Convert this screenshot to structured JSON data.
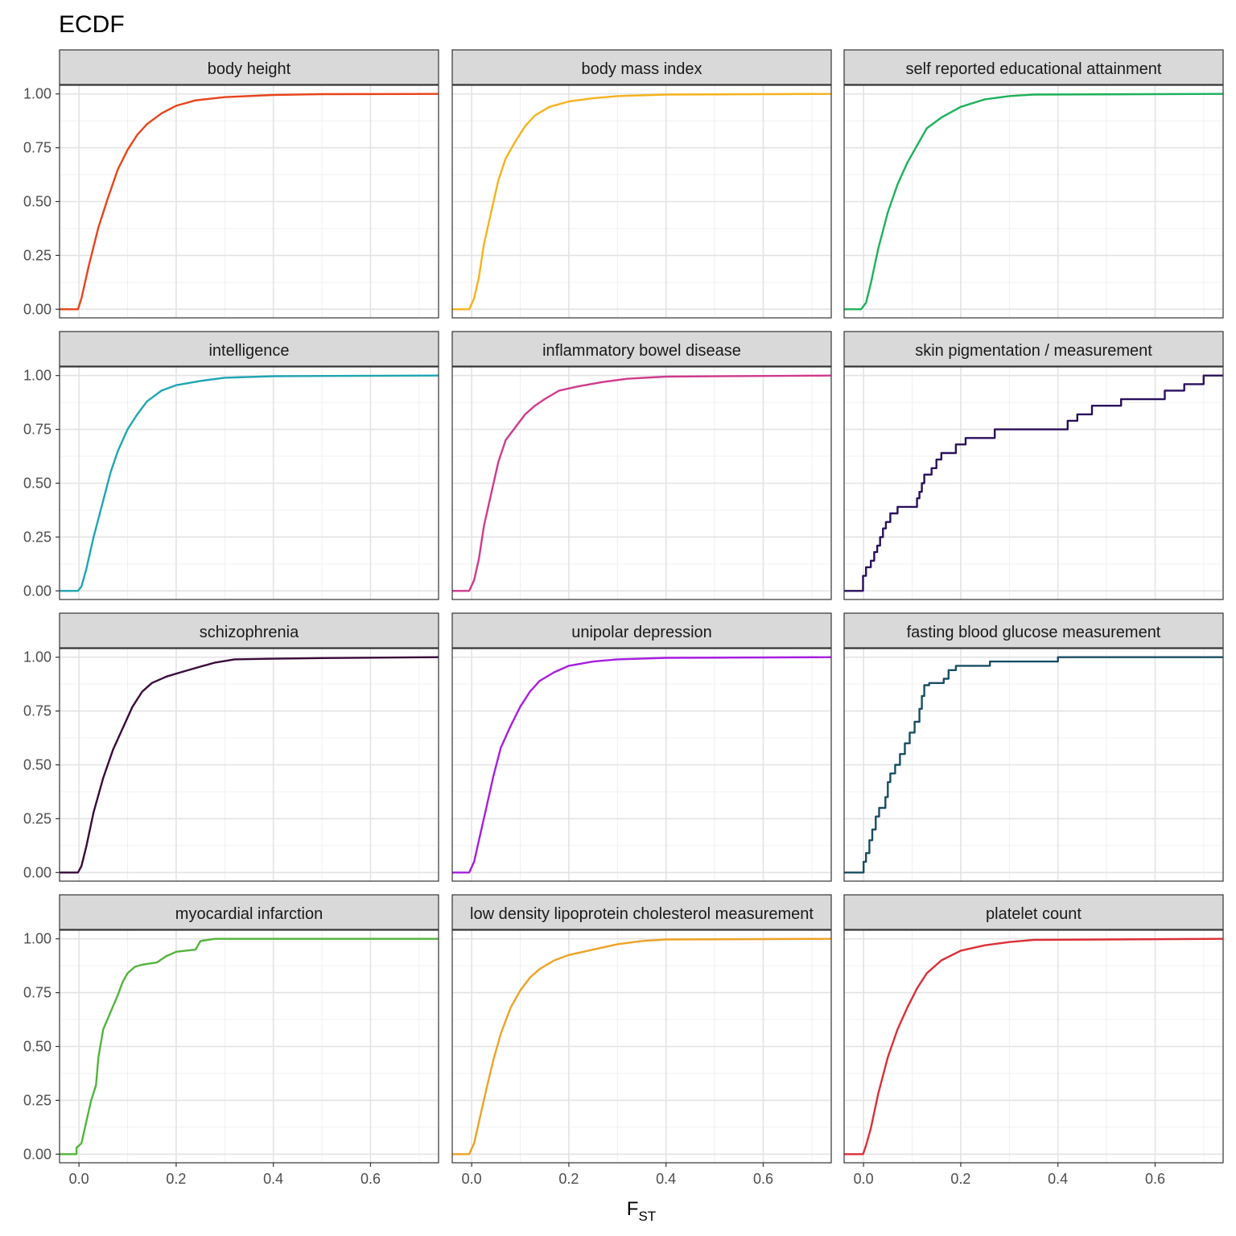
{
  "chart_data": {
    "type": "line",
    "title": "ECDF",
    "xlabel_main": "F",
    "xlabel_sub": "ST",
    "ylabel": "",
    "xlim": [
      -0.04,
      0.74
    ],
    "ylim": [
      -0.04,
      1.04
    ],
    "x_ticks": [
      0.0,
      0.2,
      0.4,
      0.6
    ],
    "x_tick_labels": [
      "0.0",
      "0.2",
      "0.4",
      "0.6"
    ],
    "y_ticks": [
      0.0,
      0.25,
      0.5,
      0.75,
      1.0
    ],
    "y_tick_labels": [
      "0.00",
      "0.25",
      "0.50",
      "0.75",
      "1.00"
    ],
    "grid": true,
    "panels": [
      {
        "name": "body height",
        "color": "#E8431A",
        "points": [
          [
            -0.04,
            0
          ],
          [
            -0.002,
            0
          ],
          [
            0.005,
            0.05
          ],
          [
            0.02,
            0.2
          ],
          [
            0.04,
            0.38
          ],
          [
            0.06,
            0.52
          ],
          [
            0.08,
            0.65
          ],
          [
            0.1,
            0.74
          ],
          [
            0.12,
            0.81
          ],
          [
            0.14,
            0.86
          ],
          [
            0.17,
            0.91
          ],
          [
            0.2,
            0.945
          ],
          [
            0.24,
            0.97
          ],
          [
            0.3,
            0.985
          ],
          [
            0.4,
            0.995
          ],
          [
            0.5,
            0.999
          ],
          [
            0.74,
            1
          ]
        ]
      },
      {
        "name": "body mass index",
        "color": "#F5B21C",
        "points": [
          [
            -0.04,
            0
          ],
          [
            -0.005,
            0
          ],
          [
            0.005,
            0.05
          ],
          [
            0.015,
            0.15
          ],
          [
            0.025,
            0.3
          ],
          [
            0.04,
            0.45
          ],
          [
            0.055,
            0.6
          ],
          [
            0.07,
            0.7
          ],
          [
            0.09,
            0.78
          ],
          [
            0.11,
            0.85
          ],
          [
            0.13,
            0.9
          ],
          [
            0.16,
            0.94
          ],
          [
            0.2,
            0.965
          ],
          [
            0.25,
            0.98
          ],
          [
            0.3,
            0.99
          ],
          [
            0.4,
            0.997
          ],
          [
            0.74,
            1
          ]
        ]
      },
      {
        "name": "self reported educational attainment",
        "color": "#1DB15A",
        "points": [
          [
            -0.04,
            0
          ],
          [
            -0.005,
            0
          ],
          [
            0.005,
            0.03
          ],
          [
            0.015,
            0.12
          ],
          [
            0.03,
            0.28
          ],
          [
            0.05,
            0.45
          ],
          [
            0.07,
            0.58
          ],
          [
            0.09,
            0.68
          ],
          [
            0.11,
            0.76
          ],
          [
            0.13,
            0.84
          ],
          [
            0.16,
            0.89
          ],
          [
            0.2,
            0.94
          ],
          [
            0.25,
            0.975
          ],
          [
            0.3,
            0.99
          ],
          [
            0.35,
            0.997
          ],
          [
            0.74,
            1
          ]
        ]
      },
      {
        "name": "intelligence",
        "color": "#1FA5B3",
        "points": [
          [
            -0.04,
            0
          ],
          [
            -0.002,
            0
          ],
          [
            0.005,
            0.02
          ],
          [
            0.015,
            0.1
          ],
          [
            0.03,
            0.25
          ],
          [
            0.05,
            0.42
          ],
          [
            0.065,
            0.55
          ],
          [
            0.08,
            0.65
          ],
          [
            0.1,
            0.75
          ],
          [
            0.12,
            0.82
          ],
          [
            0.14,
            0.88
          ],
          [
            0.17,
            0.93
          ],
          [
            0.2,
            0.955
          ],
          [
            0.25,
            0.975
          ],
          [
            0.3,
            0.99
          ],
          [
            0.4,
            0.997
          ],
          [
            0.74,
            1
          ]
        ]
      },
      {
        "name": "inflammatory bowel disease",
        "color": "#D03A8C",
        "points": [
          [
            -0.04,
            0
          ],
          [
            -0.005,
            0
          ],
          [
            0.005,
            0.05
          ],
          [
            0.015,
            0.15
          ],
          [
            0.025,
            0.3
          ],
          [
            0.04,
            0.45
          ],
          [
            0.055,
            0.6
          ],
          [
            0.07,
            0.7
          ],
          [
            0.09,
            0.76
          ],
          [
            0.11,
            0.82
          ],
          [
            0.13,
            0.86
          ],
          [
            0.15,
            0.89
          ],
          [
            0.18,
            0.93
          ],
          [
            0.22,
            0.95
          ],
          [
            0.27,
            0.97
          ],
          [
            0.32,
            0.985
          ],
          [
            0.4,
            0.995
          ],
          [
            0.74,
            1
          ]
        ]
      },
      {
        "name": "skin pigmentation / measurement",
        "color": "#2A0F5C",
        "points": [
          [
            -0.04,
            0
          ],
          [
            -0.001,
            0
          ],
          [
            -0.001,
            0.07
          ],
          [
            0.005,
            0.07
          ],
          [
            0.005,
            0.11
          ],
          [
            0.015,
            0.11
          ],
          [
            0.015,
            0.14
          ],
          [
            0.022,
            0.14
          ],
          [
            0.022,
            0.18
          ],
          [
            0.028,
            0.18
          ],
          [
            0.028,
            0.21
          ],
          [
            0.034,
            0.21
          ],
          [
            0.034,
            0.25
          ],
          [
            0.04,
            0.25
          ],
          [
            0.04,
            0.29
          ],
          [
            0.046,
            0.29
          ],
          [
            0.046,
            0.32
          ],
          [
            0.055,
            0.32
          ],
          [
            0.055,
            0.36
          ],
          [
            0.07,
            0.36
          ],
          [
            0.07,
            0.39
          ],
          [
            0.11,
            0.39
          ],
          [
            0.11,
            0.43
          ],
          [
            0.115,
            0.43
          ],
          [
            0.115,
            0.46
          ],
          [
            0.12,
            0.46
          ],
          [
            0.12,
            0.5
          ],
          [
            0.125,
            0.5
          ],
          [
            0.125,
            0.54
          ],
          [
            0.14,
            0.54
          ],
          [
            0.14,
            0.57
          ],
          [
            0.15,
            0.57
          ],
          [
            0.15,
            0.61
          ],
          [
            0.16,
            0.61
          ],
          [
            0.16,
            0.64
          ],
          [
            0.19,
            0.64
          ],
          [
            0.19,
            0.68
          ],
          [
            0.21,
            0.68
          ],
          [
            0.21,
            0.71
          ],
          [
            0.27,
            0.71
          ],
          [
            0.27,
            0.75
          ],
          [
            0.42,
            0.75
          ],
          [
            0.42,
            0.79
          ],
          [
            0.44,
            0.79
          ],
          [
            0.44,
            0.82
          ],
          [
            0.47,
            0.82
          ],
          [
            0.47,
            0.86
          ],
          [
            0.53,
            0.86
          ],
          [
            0.53,
            0.89
          ],
          [
            0.62,
            0.89
          ],
          [
            0.62,
            0.93
          ],
          [
            0.66,
            0.93
          ],
          [
            0.66,
            0.96
          ],
          [
            0.7,
            0.96
          ],
          [
            0.7,
            1.0
          ],
          [
            0.74,
            1.0
          ]
        ]
      },
      {
        "name": "schizophrenia",
        "color": "#3A0A3A",
        "points": [
          [
            -0.04,
            0
          ],
          [
            -0.002,
            0
          ],
          [
            0.005,
            0.03
          ],
          [
            0.015,
            0.12
          ],
          [
            0.03,
            0.28
          ],
          [
            0.05,
            0.44
          ],
          [
            0.07,
            0.57
          ],
          [
            0.09,
            0.67
          ],
          [
            0.11,
            0.77
          ],
          [
            0.13,
            0.84
          ],
          [
            0.15,
            0.88
          ],
          [
            0.18,
            0.91
          ],
          [
            0.21,
            0.93
          ],
          [
            0.24,
            0.95
          ],
          [
            0.28,
            0.975
          ],
          [
            0.32,
            0.99
          ],
          [
            0.4,
            0.993
          ],
          [
            0.5,
            0.996
          ],
          [
            0.74,
            1
          ]
        ]
      },
      {
        "name": "unipolar depression",
        "color": "#A81DE0",
        "points": [
          [
            -0.04,
            0
          ],
          [
            -0.005,
            0
          ],
          [
            0.005,
            0.05
          ],
          [
            0.015,
            0.15
          ],
          [
            0.03,
            0.3
          ],
          [
            0.045,
            0.45
          ],
          [
            0.06,
            0.58
          ],
          [
            0.08,
            0.68
          ],
          [
            0.1,
            0.77
          ],
          [
            0.12,
            0.84
          ],
          [
            0.14,
            0.89
          ],
          [
            0.17,
            0.93
          ],
          [
            0.2,
            0.96
          ],
          [
            0.25,
            0.98
          ],
          [
            0.3,
            0.99
          ],
          [
            0.4,
            0.997
          ],
          [
            0.74,
            1
          ]
        ]
      },
      {
        "name": "fasting blood glucose measurement",
        "color": "#184E63",
        "points": [
          [
            -0.04,
            0
          ],
          [
            0.0,
            0
          ],
          [
            0.0,
            0.05
          ],
          [
            0.005,
            0.05
          ],
          [
            0.005,
            0.09
          ],
          [
            0.012,
            0.09
          ],
          [
            0.012,
            0.15
          ],
          [
            0.018,
            0.15
          ],
          [
            0.018,
            0.2
          ],
          [
            0.025,
            0.2
          ],
          [
            0.025,
            0.26
          ],
          [
            0.032,
            0.26
          ],
          [
            0.032,
            0.3
          ],
          [
            0.045,
            0.3
          ],
          [
            0.045,
            0.35
          ],
          [
            0.05,
            0.35
          ],
          [
            0.05,
            0.42
          ],
          [
            0.055,
            0.42
          ],
          [
            0.055,
            0.46
          ],
          [
            0.065,
            0.46
          ],
          [
            0.065,
            0.5
          ],
          [
            0.075,
            0.5
          ],
          [
            0.075,
            0.55
          ],
          [
            0.085,
            0.55
          ],
          [
            0.085,
            0.6
          ],
          [
            0.095,
            0.6
          ],
          [
            0.095,
            0.65
          ],
          [
            0.105,
            0.65
          ],
          [
            0.105,
            0.7
          ],
          [
            0.115,
            0.7
          ],
          [
            0.115,
            0.76
          ],
          [
            0.12,
            0.76
          ],
          [
            0.12,
            0.82
          ],
          [
            0.125,
            0.82
          ],
          [
            0.125,
            0.87
          ],
          [
            0.135,
            0.87
          ],
          [
            0.135,
            0.88
          ],
          [
            0.165,
            0.88
          ],
          [
            0.165,
            0.9
          ],
          [
            0.175,
            0.9
          ],
          [
            0.175,
            0.94
          ],
          [
            0.19,
            0.94
          ],
          [
            0.19,
            0.96
          ],
          [
            0.26,
            0.96
          ],
          [
            0.26,
            0.98
          ],
          [
            0.4,
            0.98
          ],
          [
            0.4,
            1.0
          ],
          [
            0.74,
            1.0
          ]
        ]
      },
      {
        "name": "myocardial infarction",
        "color": "#52B43A",
        "points": [
          [
            -0.04,
            0
          ],
          [
            -0.005,
            0
          ],
          [
            -0.005,
            0.03
          ],
          [
            0.005,
            0.05
          ],
          [
            0.015,
            0.15
          ],
          [
            0.025,
            0.25
          ],
          [
            0.035,
            0.32
          ],
          [
            0.04,
            0.45
          ],
          [
            0.05,
            0.58
          ],
          [
            0.065,
            0.66
          ],
          [
            0.08,
            0.74
          ],
          [
            0.09,
            0.8
          ],
          [
            0.1,
            0.84
          ],
          [
            0.115,
            0.87
          ],
          [
            0.13,
            0.88
          ],
          [
            0.16,
            0.89
          ],
          [
            0.18,
            0.92
          ],
          [
            0.2,
            0.94
          ],
          [
            0.24,
            0.95
          ],
          [
            0.25,
            0.99
          ],
          [
            0.28,
            1.0
          ],
          [
            0.74,
            1.0
          ]
        ]
      },
      {
        "name": "low density lipoprotein cholesterol measurement",
        "color": "#EDA226",
        "points": [
          [
            -0.04,
            0
          ],
          [
            -0.005,
            0
          ],
          [
            0.005,
            0.05
          ],
          [
            0.015,
            0.15
          ],
          [
            0.03,
            0.3
          ],
          [
            0.045,
            0.44
          ],
          [
            0.06,
            0.56
          ],
          [
            0.08,
            0.68
          ],
          [
            0.1,
            0.76
          ],
          [
            0.12,
            0.82
          ],
          [
            0.14,
            0.86
          ],
          [
            0.17,
            0.9
          ],
          [
            0.2,
            0.925
          ],
          [
            0.25,
            0.95
          ],
          [
            0.3,
            0.975
          ],
          [
            0.35,
            0.99
          ],
          [
            0.4,
            0.997
          ],
          [
            0.74,
            1
          ]
        ]
      },
      {
        "name": "platelet count",
        "color": "#DB2F36",
        "points": [
          [
            -0.04,
            0
          ],
          [
            -0.001,
            0
          ],
          [
            0.005,
            0.04
          ],
          [
            0.015,
            0.12
          ],
          [
            0.03,
            0.28
          ],
          [
            0.05,
            0.45
          ],
          [
            0.07,
            0.58
          ],
          [
            0.09,
            0.68
          ],
          [
            0.11,
            0.77
          ],
          [
            0.13,
            0.84
          ],
          [
            0.16,
            0.9
          ],
          [
            0.2,
            0.945
          ],
          [
            0.25,
            0.97
          ],
          [
            0.3,
            0.985
          ],
          [
            0.35,
            0.995
          ],
          [
            0.74,
            1
          ]
        ]
      }
    ]
  }
}
